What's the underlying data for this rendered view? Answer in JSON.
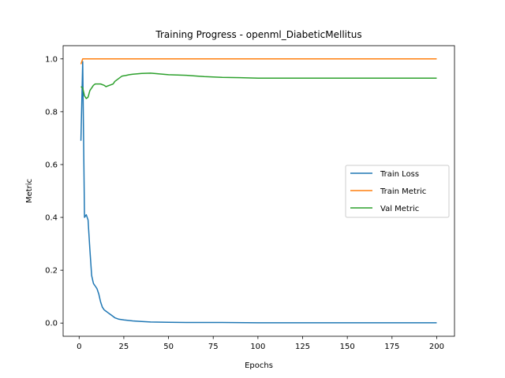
{
  "chart_data": {
    "type": "line",
    "title": "Training Progress - openml_DiabeticMellitus",
    "xlabel": "Epochs",
    "ylabel": "Metric",
    "xlim": [
      -8.95,
      209.95
    ],
    "ylim": [
      -0.05,
      1.05
    ],
    "xticks": [
      0,
      25,
      50,
      75,
      100,
      125,
      150,
      175,
      200
    ],
    "yticks": [
      0.0,
      0.2,
      0.4,
      0.6,
      0.8,
      1.0
    ],
    "ytick_labels": [
      "0.0",
      "0.2",
      "0.4",
      "0.6",
      "0.8",
      "1.0"
    ],
    "grid": false,
    "legend_position": "center-right",
    "series": [
      {
        "name": "Train Loss",
        "color": "#1f77b4",
        "x": [
          1,
          2,
          3,
          4,
          5,
          6,
          7,
          8,
          9,
          10,
          11,
          12,
          13,
          14,
          15,
          16,
          17,
          18,
          20,
          22,
          25,
          30,
          35,
          40,
          50,
          60,
          80,
          100,
          150,
          200
        ],
        "y": [
          0.69,
          0.99,
          0.4,
          0.41,
          0.39,
          0.28,
          0.18,
          0.15,
          0.14,
          0.13,
          0.11,
          0.08,
          0.06,
          0.05,
          0.045,
          0.04,
          0.035,
          0.03,
          0.02,
          0.015,
          0.012,
          0.008,
          0.006,
          0.004,
          0.003,
          0.002,
          0.002,
          0.001,
          0.001,
          0.001
        ]
      },
      {
        "name": "Train Metric",
        "color": "#ff7f0e",
        "x": [
          1,
          2,
          3,
          200
        ],
        "y": [
          0.98,
          1.0,
          1.0,
          1.0
        ]
      },
      {
        "name": "Val Metric",
        "color": "#2ca02c",
        "x": [
          1,
          2,
          3,
          4,
          5,
          6,
          7,
          8,
          9,
          10,
          12,
          14,
          15,
          17,
          19,
          20,
          22,
          24,
          26,
          28,
          30,
          35,
          40,
          45,
          50,
          60,
          70,
          80,
          90,
          100,
          150,
          200
        ],
        "y": [
          0.895,
          0.89,
          0.86,
          0.85,
          0.855,
          0.88,
          0.89,
          0.9,
          0.905,
          0.905,
          0.905,
          0.9,
          0.895,
          0.9,
          0.905,
          0.915,
          0.925,
          0.935,
          0.937,
          0.94,
          0.942,
          0.945,
          0.946,
          0.943,
          0.94,
          0.938,
          0.933,
          0.93,
          0.929,
          0.927,
          0.927,
          0.927
        ]
      }
    ]
  }
}
